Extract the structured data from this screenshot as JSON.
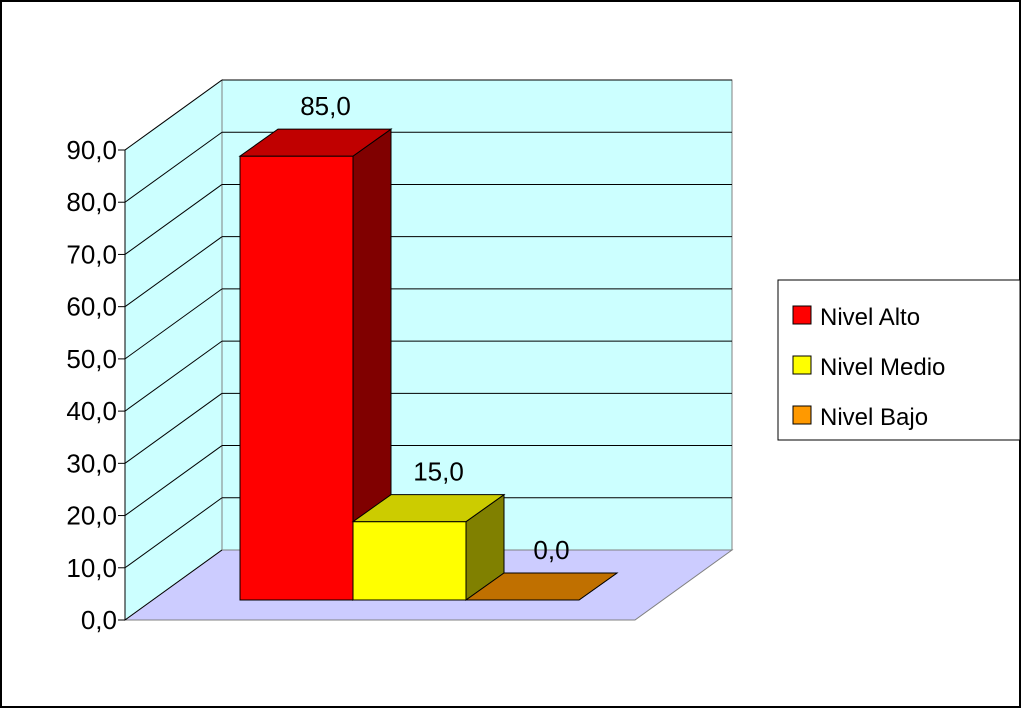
{
  "chart_data": {
    "type": "bar",
    "title": "",
    "xlabel": "",
    "ylabel": "",
    "ylim": [
      0,
      90
    ],
    "ytick_step": 10,
    "ytick_labels": [
      "0,0",
      "10,0",
      "20,0",
      "30,0",
      "40,0",
      "50,0",
      "60,0",
      "70,0",
      "80,0",
      "90,0"
    ],
    "grid": true,
    "legend_position": "right",
    "series": [
      {
        "name": "Nivel Alto",
        "value": 85.0,
        "label": "85,0",
        "color": "#ff0000",
        "top_color": "#c00000",
        "side_color": "#800000"
      },
      {
        "name": "Nivel Medio",
        "value": 15.0,
        "label": "15,0",
        "color": "#ffff00",
        "top_color": "#cccc00",
        "side_color": "#808000"
      },
      {
        "name": "Nivel Bajo",
        "value": 0.0,
        "label": "0,0",
        "color": "#ff9900",
        "top_color": "#c07000",
        "side_color": "#805000"
      }
    ],
    "colors": {
      "back_wall": "#ccffff",
      "floor": "#ccccff",
      "grid": "#000000"
    }
  }
}
